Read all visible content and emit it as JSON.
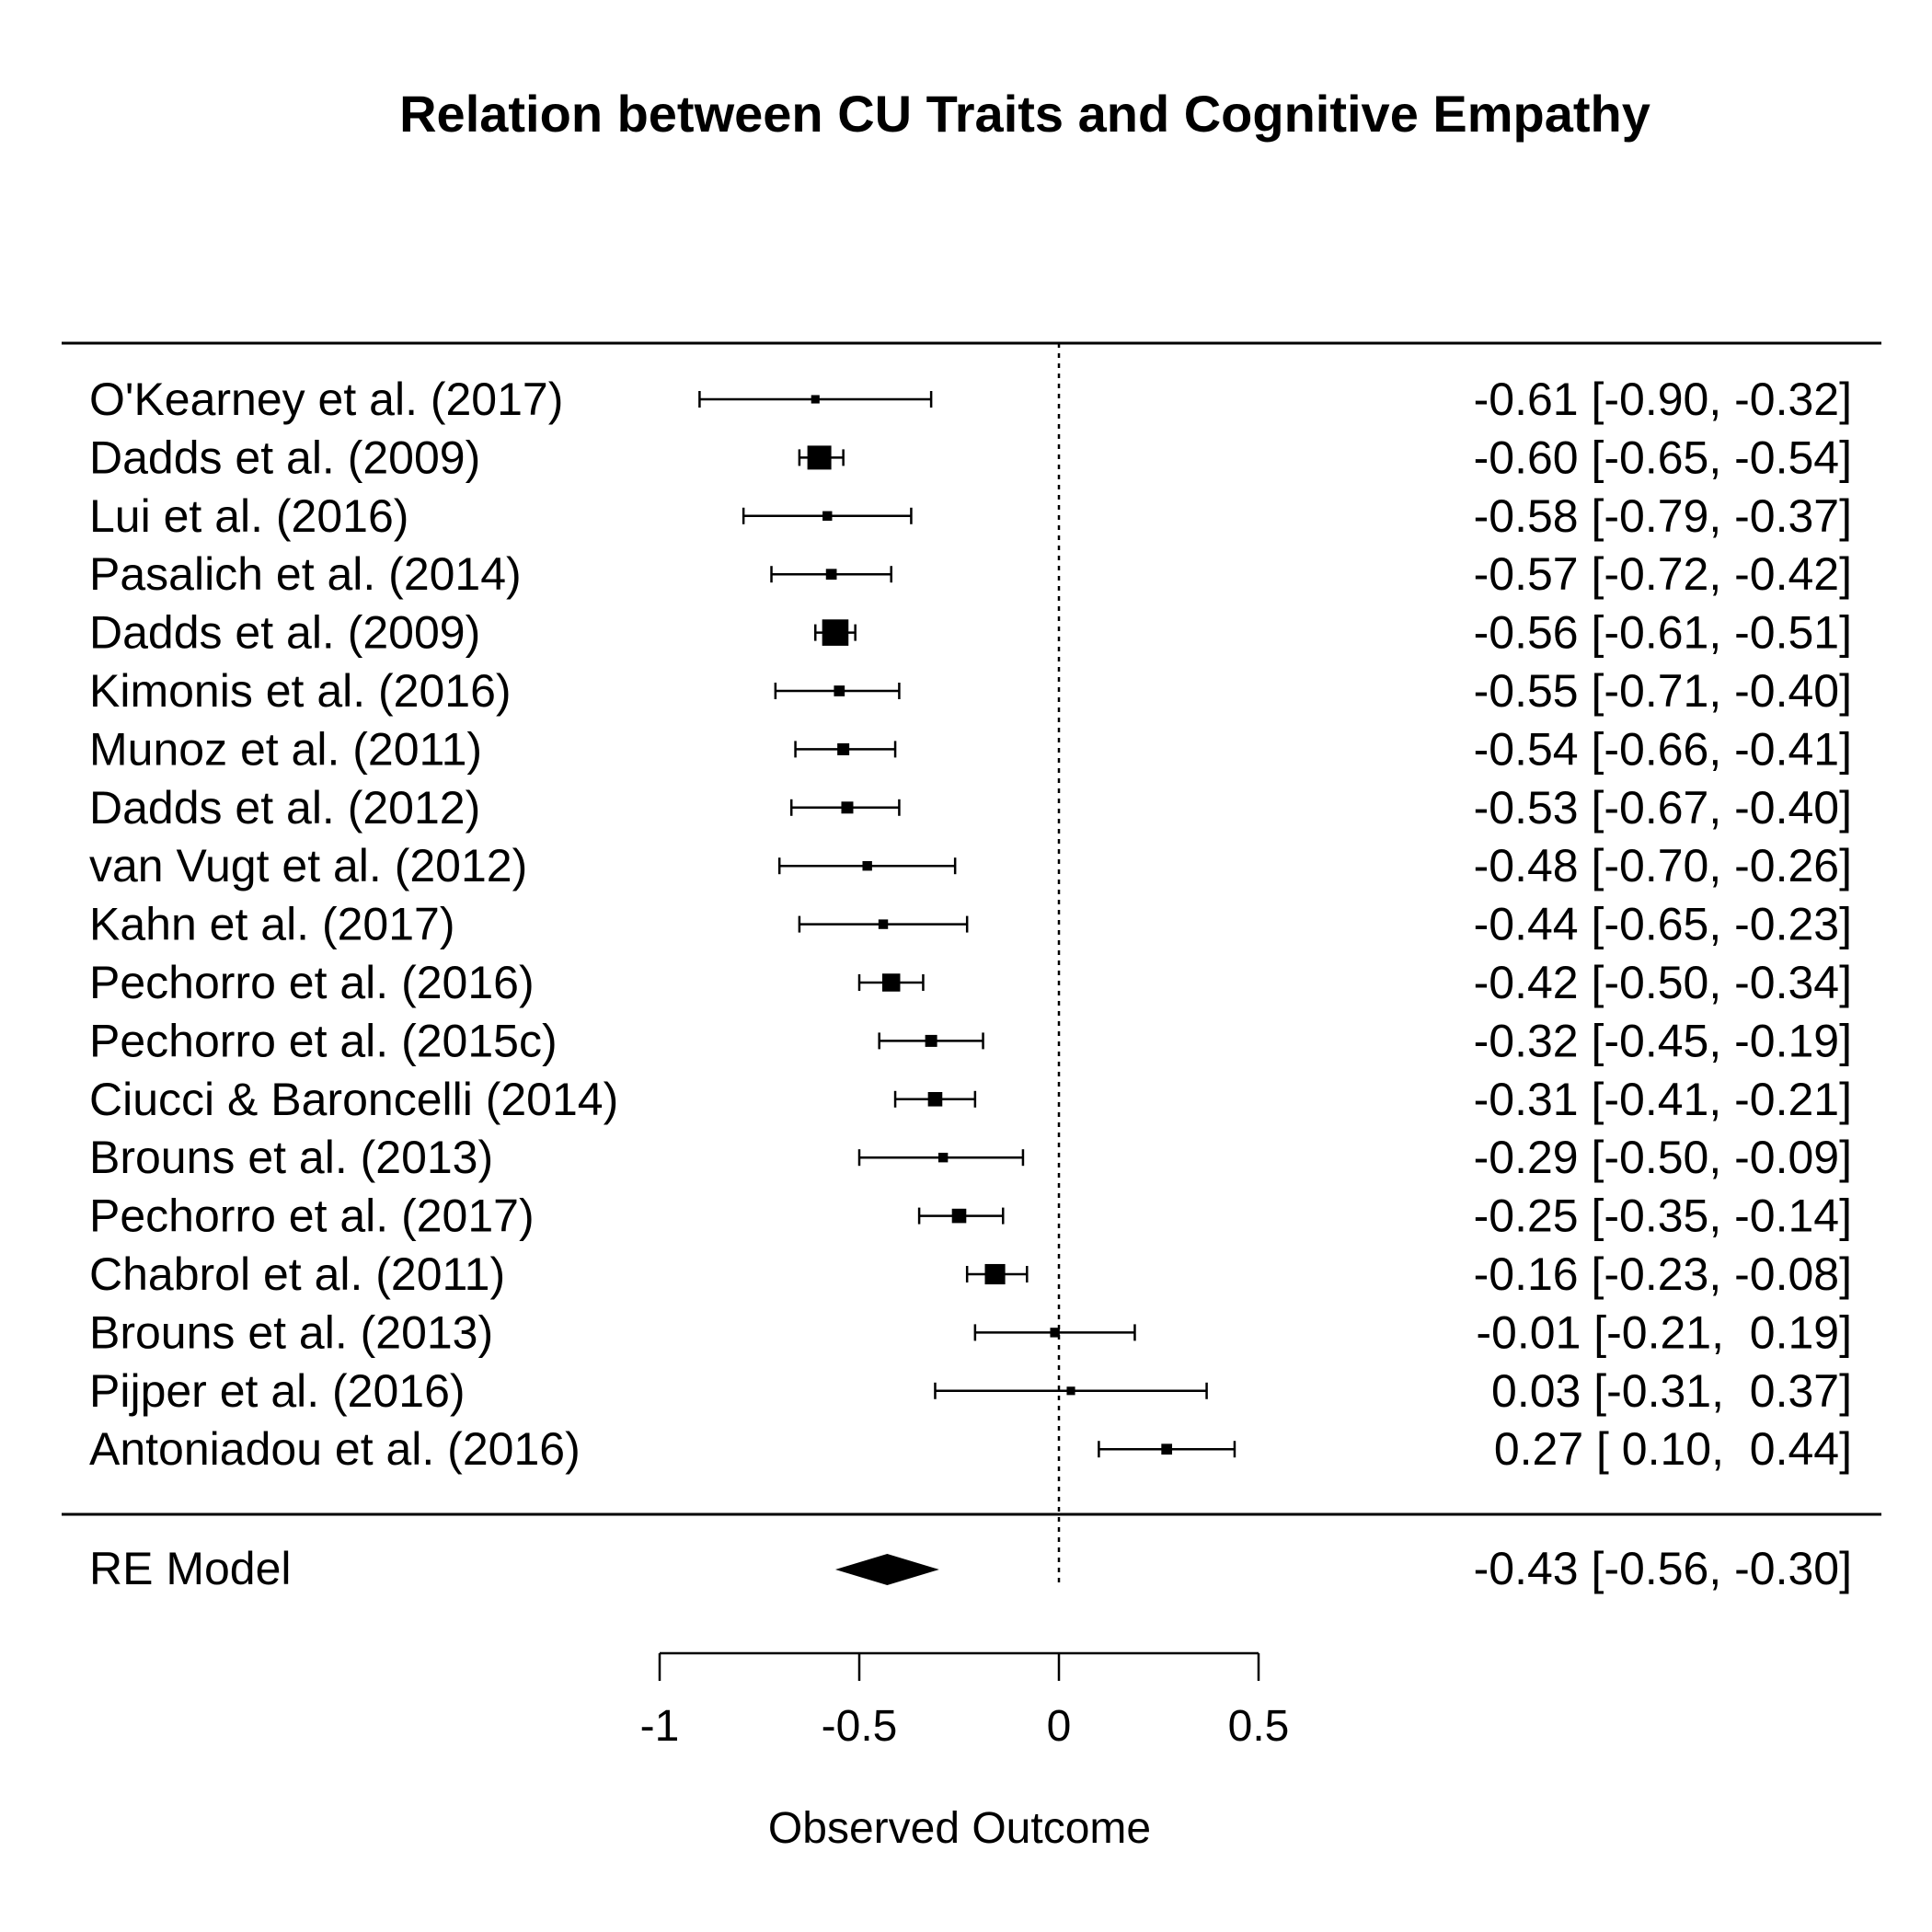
{
  "chart_data": {
    "type": "forest",
    "title": "Relation between CU Traits and Cognitive Empathy",
    "xlabel": "Observed Outcome",
    "xlim": [
      -1,
      0.5
    ],
    "xticks": [
      -1,
      -0.5,
      0,
      0.5
    ],
    "xtick_labels": [
      "-1",
      "-0.5",
      "0",
      "0.5"
    ],
    "reference_line": 0,
    "studies": [
      {
        "label": "O'Kearney et al. (2017)",
        "estimate": -0.61,
        "lower": -0.9,
        "upper": -0.32,
        "ci_text": "-0.61 [-0.90, -0.32]",
        "weight": 0.35
      },
      {
        "label": "Dadds et al. (2009)",
        "estimate": -0.6,
        "lower": -0.65,
        "upper": -0.54,
        "ci_text": "-0.60 [-0.65, -0.54]",
        "weight": 1.0
      },
      {
        "label": "Lui et al. (2016)",
        "estimate": -0.58,
        "lower": -0.79,
        "upper": -0.37,
        "ci_text": "-0.58 [-0.79, -0.37]",
        "weight": 0.4
      },
      {
        "label": "Pasalich et al. (2014)",
        "estimate": -0.57,
        "lower": -0.72,
        "upper": -0.42,
        "ci_text": "-0.57 [-0.72, -0.42]",
        "weight": 0.45
      },
      {
        "label": "Dadds et al. (2009)",
        "estimate": -0.56,
        "lower": -0.61,
        "upper": -0.51,
        "ci_text": "-0.56 [-0.61, -0.51]",
        "weight": 1.1
      },
      {
        "label": "Kimonis et al. (2016)",
        "estimate": -0.55,
        "lower": -0.71,
        "upper": -0.4,
        "ci_text": "-0.55 [-0.71, -0.40]",
        "weight": 0.45
      },
      {
        "label": "Munoz et al. (2011)",
        "estimate": -0.54,
        "lower": -0.66,
        "upper": -0.41,
        "ci_text": "-0.54 [-0.66, -0.41]",
        "weight": 0.5
      },
      {
        "label": "Dadds et al. (2012)",
        "estimate": -0.53,
        "lower": -0.67,
        "upper": -0.4,
        "ci_text": "-0.53 [-0.67, -0.40]",
        "weight": 0.5
      },
      {
        "label": "van Vugt et al. (2012)",
        "estimate": -0.48,
        "lower": -0.7,
        "upper": -0.26,
        "ci_text": "-0.48 [-0.70, -0.26]",
        "weight": 0.4
      },
      {
        "label": "Kahn et al. (2017)",
        "estimate": -0.44,
        "lower": -0.65,
        "upper": -0.23,
        "ci_text": "-0.44 [-0.65, -0.23]",
        "weight": 0.4
      },
      {
        "label": "Pechorro et al. (2016)",
        "estimate": -0.42,
        "lower": -0.5,
        "upper": -0.34,
        "ci_text": "-0.42 [-0.50, -0.34]",
        "weight": 0.75
      },
      {
        "label": "Pechorro et al. (2015c)",
        "estimate": -0.32,
        "lower": -0.45,
        "upper": -0.19,
        "ci_text": "-0.32 [-0.45, -0.19]",
        "weight": 0.5
      },
      {
        "label": "Ciucci & Baroncelli (2014)",
        "estimate": -0.31,
        "lower": -0.41,
        "upper": -0.21,
        "ci_text": "-0.31 [-0.41, -0.21]",
        "weight": 0.6
      },
      {
        "label": "Brouns et al. (2013)",
        "estimate": -0.29,
        "lower": -0.5,
        "upper": -0.09,
        "ci_text": "-0.29 [-0.50, -0.09]",
        "weight": 0.4
      },
      {
        "label": "Pechorro et al. (2017)",
        "estimate": -0.25,
        "lower": -0.35,
        "upper": -0.14,
        "ci_text": "-0.25 [-0.35, -0.14]",
        "weight": 0.6
      },
      {
        "label": "Chabrol et al. (2011)",
        "estimate": -0.16,
        "lower": -0.23,
        "upper": -0.08,
        "ci_text": "-0.16 [-0.23, -0.08]",
        "weight": 0.85
      },
      {
        "label": "Brouns et al. (2013)",
        "estimate": -0.01,
        "lower": -0.21,
        "upper": 0.19,
        "ci_text": "-0.01 [-0.21,  0.19]",
        "weight": 0.4
      },
      {
        "label": "Pijper et al. (2016)",
        "estimate": 0.03,
        "lower": -0.31,
        "upper": 0.37,
        "ci_text": "0.03 [-0.31,  0.37]",
        "weight": 0.35
      },
      {
        "label": "Antoniadou et al. (2016)",
        "estimate": 0.27,
        "lower": 0.1,
        "upper": 0.44,
        "ci_text": "0.27 [ 0.10,  0.44]",
        "weight": 0.45
      }
    ],
    "summary": {
      "label": "RE Model",
      "estimate": -0.43,
      "lower": -0.56,
      "upper": -0.3,
      "ci_text": "-0.43 [-0.56, -0.30]"
    }
  }
}
